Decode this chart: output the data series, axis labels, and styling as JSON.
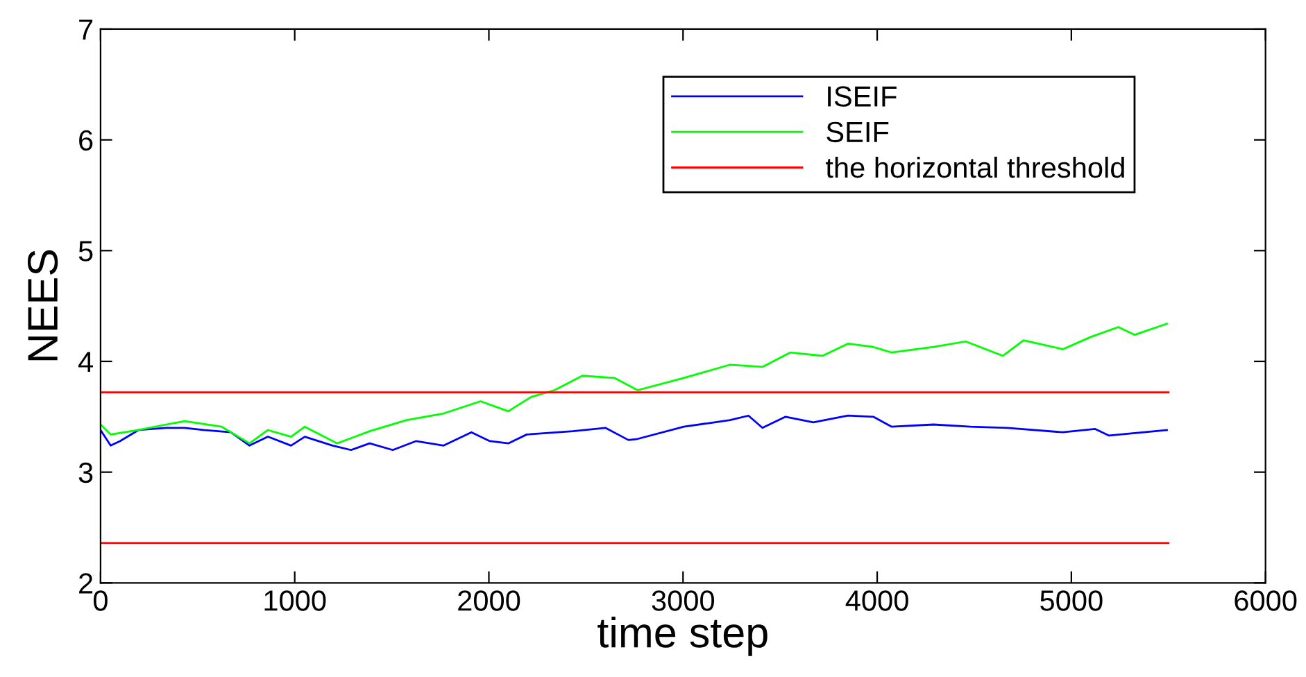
{
  "chart_data": {
    "type": "line",
    "xlabel": "time step",
    "ylabel": "NEES",
    "xlim": [
      0,
      6000
    ],
    "xticks": [
      0,
      1000,
      2000,
      3000,
      4000,
      5000,
      6000
    ],
    "ylim": [
      2,
      7
    ],
    "yticks": [
      2,
      3,
      4,
      5,
      6,
      7
    ],
    "grid": false,
    "legend": "top right",
    "marker": "none",
    "line_style": "solid",
    "series": [
      {
        "name": "ISEIF",
        "color": "#0000ff",
        "x": [
          0,
          52,
          100,
          195,
          338,
          433,
          529,
          671,
          767,
          862,
          981,
          1052,
          1195,
          1290,
          1386,
          1505,
          1624,
          1767,
          1910,
          2005,
          2100,
          2195,
          2433,
          2600,
          2719,
          2766,
          3004,
          3242,
          3337,
          3409,
          3528,
          3671,
          3849,
          3980,
          4075,
          4290,
          4480,
          4670,
          4956,
          5123,
          5194,
          5492
        ],
        "values": [
          3.38,
          3.24,
          3.28,
          3.38,
          3.4,
          3.4,
          3.38,
          3.36,
          3.24,
          3.32,
          3.24,
          3.32,
          3.24,
          3.2,
          3.26,
          3.2,
          3.28,
          3.24,
          3.36,
          3.28,
          3.26,
          3.34,
          3.37,
          3.4,
          3.29,
          3.3,
          3.41,
          3.47,
          3.51,
          3.4,
          3.5,
          3.45,
          3.51,
          3.5,
          3.41,
          3.43,
          3.41,
          3.4,
          3.36,
          3.39,
          3.33,
          3.38
        ]
      },
      {
        "name": "SEIF",
        "color": "#00ff00",
        "x": [
          0,
          52,
          195,
          338,
          433,
          624,
          767,
          862,
          981,
          1052,
          1219,
          1386,
          1576,
          1767,
          1957,
          2100,
          2219,
          2338,
          2481,
          2648,
          2766,
          3004,
          3242,
          3409,
          3552,
          3718,
          3849,
          3980,
          4075,
          4290,
          4456,
          4647,
          4754,
          4956,
          5099,
          5242,
          5326,
          5492
        ],
        "values": [
          3.43,
          3.34,
          3.38,
          3.43,
          3.46,
          3.41,
          3.26,
          3.38,
          3.32,
          3.41,
          3.26,
          3.37,
          3.47,
          3.53,
          3.64,
          3.55,
          3.68,
          3.74,
          3.87,
          3.85,
          3.74,
          3.85,
          3.97,
          3.95,
          4.08,
          4.05,
          4.16,
          4.13,
          4.08,
          4.13,
          4.18,
          4.05,
          4.19,
          4.11,
          4.22,
          4.31,
          4.24,
          4.34
        ]
      },
      {
        "name": "the horizontal threshold",
        "color": "#ff0000",
        "x": [
          0,
          5500
        ],
        "values": [
          3.72,
          3.72
        ]
      },
      {
        "color": "#ff0000",
        "x": [
          0,
          5500
        ],
        "values": [
          2.36,
          2.36
        ]
      }
    ]
  }
}
